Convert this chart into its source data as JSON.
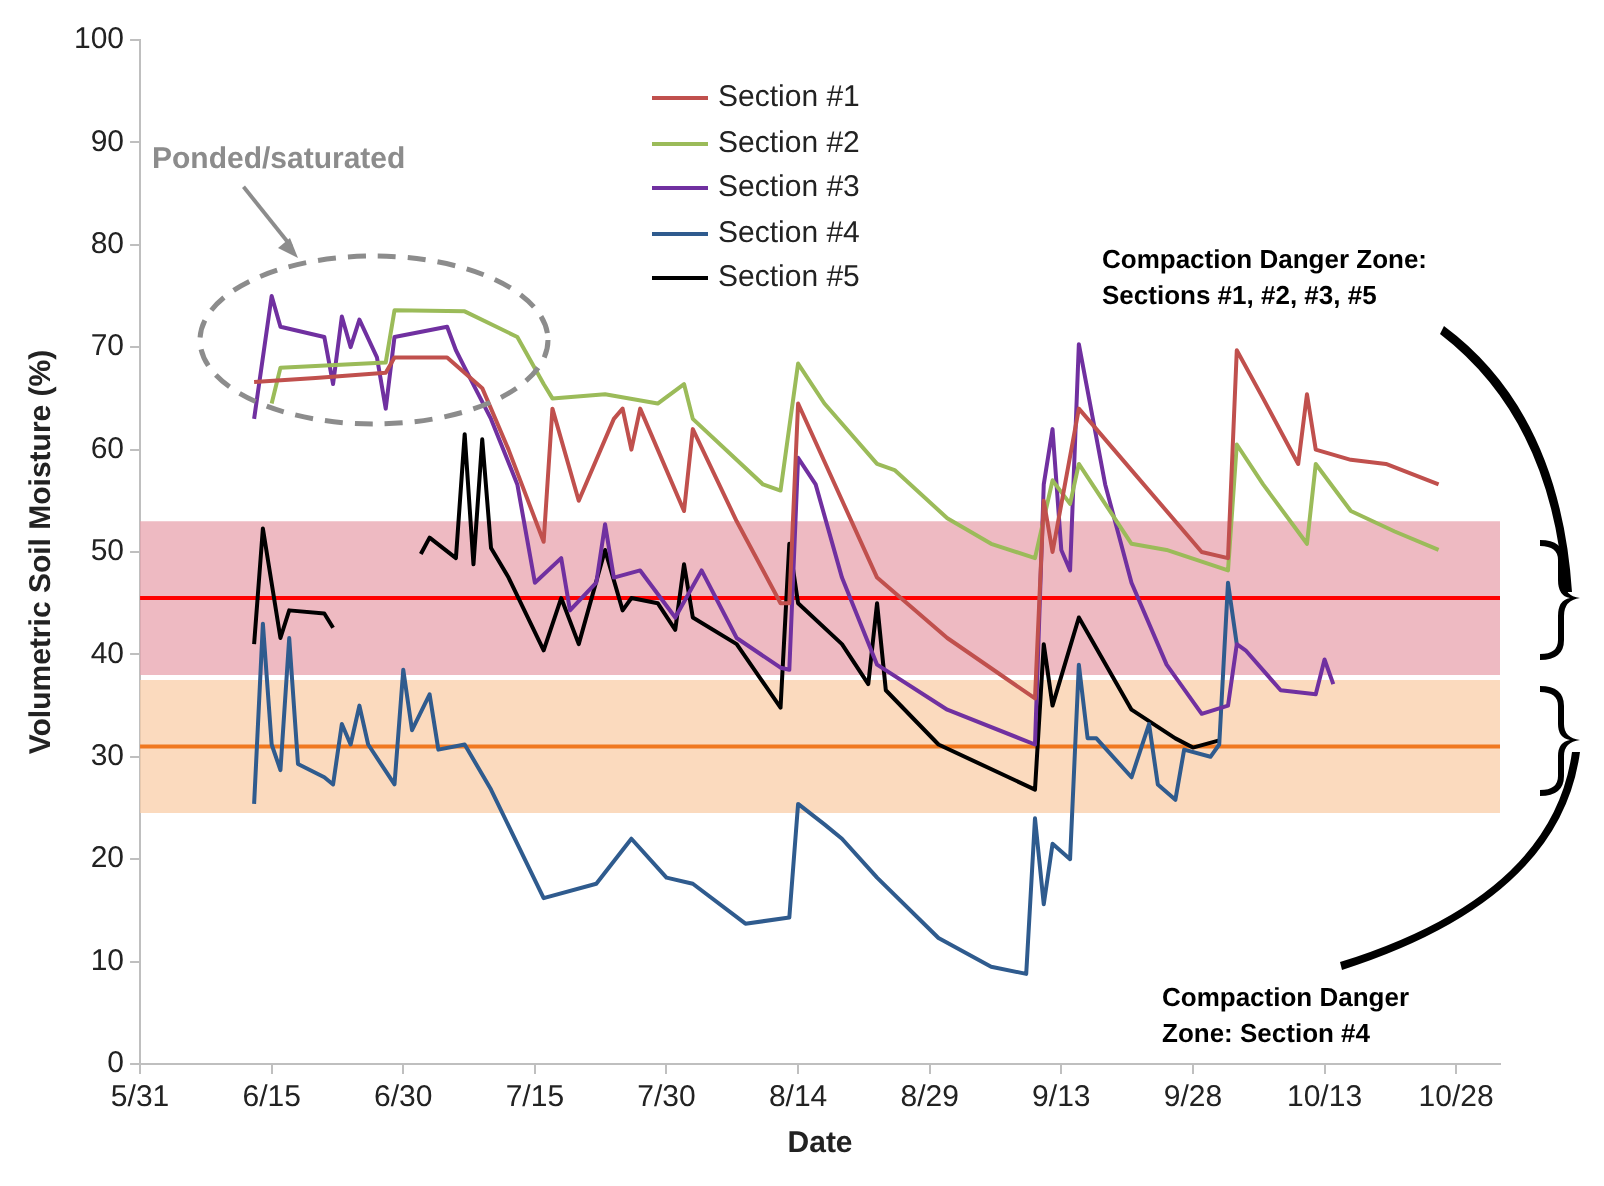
{
  "chart_data": {
    "type": "line",
    "xlabel": "Date",
    "ylabel": "Volumetric Soil Moisture (%)",
    "xlim": [
      "--05-31",
      "--11-02"
    ],
    "xticks": [
      {
        "value": "--05-31",
        "label": "5/31"
      },
      {
        "value": "--06-15",
        "label": "6/15"
      },
      {
        "value": "--06-30",
        "label": "6/30"
      },
      {
        "value": "--07-15",
        "label": "7/15"
      },
      {
        "value": "--07-30",
        "label": "7/30"
      },
      {
        "value": "--08-14",
        "label": "8/14"
      },
      {
        "value": "--08-29",
        "label": "8/29"
      },
      {
        "value": "--09-13",
        "label": "9/13"
      },
      {
        "value": "--09-28",
        "label": "9/28"
      },
      {
        "value": "--10-13",
        "label": "10/13"
      },
      {
        "value": "--10-28",
        "label": "10/28"
      }
    ],
    "ylim": [
      0,
      100
    ],
    "yticks": [
      0,
      10,
      20,
      30,
      40,
      50,
      60,
      70,
      80,
      90,
      100
    ],
    "legend": "top",
    "series": [
      {
        "name": "Section #1",
        "color": "#c0504d",
        "x": [
          "--06-13",
          "--06-20",
          "--06-28",
          "--06-29",
          "--07-05",
          "--07-09",
          "--07-10",
          "--07-12",
          "--07-16",
          "--07-17",
          "--07-20",
          "--07-24",
          "--07-25",
          "--07-26",
          "--07-27",
          "--08-01",
          "--08-02",
          "--08-07",
          "--08-12",
          "--08-13",
          "--08-14",
          "--08-23",
          "--08-31",
          "--09-10",
          "--09-11",
          "--09-12",
          "--09-15",
          "--09-21",
          "--09-29",
          "--10-02",
          "--10-03",
          "--10-06",
          "--10-10",
          "--10-11",
          "--10-12",
          "--10-16",
          "--10-20",
          "--10-26"
        ],
        "values": [
          66.6,
          67,
          67.5,
          69,
          69,
          66,
          64,
          60,
          51,
          64,
          55,
          63,
          64,
          60,
          64,
          54,
          62,
          53,
          45,
          45,
          64.5,
          47.5,
          41.6,
          35.7,
          55,
          50,
          64,
          58,
          50,
          49.4,
          69.7,
          65,
          58.6,
          65.4,
          60,
          59,
          58.6,
          56.6
        ]
      },
      {
        "name": "Section #2",
        "color": "#9bbb59",
        "x": [
          "--06-15",
          "--06-16",
          "--06-28",
          "--06-29",
          "--07-07",
          "--07-13",
          "--07-16",
          "--07-17",
          "--07-23",
          "--07-29",
          "--08-01",
          "--08-02",
          "--08-10",
          "--08-12",
          "--08-14",
          "--08-17",
          "--08-23",
          "--08-25",
          "--08-31",
          "--09-05",
          "--09-10",
          "--09-12",
          "--09-14",
          "--09-15",
          "--09-18",
          "--09-21",
          "--09-25",
          "--10-02",
          "--10-03",
          "--10-06",
          "--10-11",
          "--10-12",
          "--10-16",
          "--10-21",
          "--10-26"
        ],
        "values": [
          64.5,
          68,
          68.5,
          73.6,
          73.5,
          71,
          66.4,
          65,
          65.4,
          64.5,
          66.4,
          63,
          56.6,
          56,
          68.4,
          64.5,
          58.6,
          58,
          53.3,
          50.8,
          49.4,
          57,
          54.7,
          58.6,
          54.7,
          50.8,
          50.2,
          48.2,
          60.5,
          56.6,
          50.8,
          58.6,
          54,
          52,
          50.2
        ]
      },
      {
        "name": "Section #3",
        "color": "#7030a0",
        "x": [
          "--06-13",
          "--06-15",
          "--06-16",
          "--06-21",
          "--06-22",
          "--06-23",
          "--06-24",
          "--06-25",
          "--06-27",
          "--06-28",
          "--06-29",
          "--07-05",
          "--07-06",
          "--07-07",
          "--07-10",
          "--07-13",
          "--07-15",
          "--07-18",
          "--07-19",
          "--07-22",
          "--07-23",
          "--07-24",
          "--07-27",
          "--07-31",
          "--08-03",
          "--08-07",
          "--08-12",
          "--08-13",
          "--08-14",
          "--08-16",
          "--08-19",
          "--08-23",
          "--08-31",
          "--09-10",
          "--09-11",
          "--09-12",
          "--09-13",
          "--09-14",
          "--09-15",
          "--09-18",
          "--09-21",
          "--09-25",
          "--09-29",
          "--10-02",
          "--10-03",
          "--10-04",
          "--10-08",
          "--10-12",
          "--10-13",
          "--10-14"
        ],
        "values": [
          63,
          75,
          72,
          71,
          66.4,
          73,
          70,
          72.7,
          69,
          64,
          71,
          72,
          69.7,
          68,
          63,
          56.6,
          47,
          49.4,
          44.3,
          47,
          52.7,
          47.5,
          48.2,
          43.6,
          48.2,
          41.6,
          38.7,
          38.5,
          59.2,
          56.6,
          47.5,
          39,
          34.6,
          31.2,
          56.6,
          62,
          50.2,
          48.2,
          70.3,
          56.6,
          47,
          39,
          34.2,
          35,
          41,
          40.4,
          36.5,
          36.1,
          39.5,
          37.1
        ]
      },
      {
        "name": "Section #4",
        "color": "#2f5b8e",
        "x": [
          "--06-13",
          "--06-14",
          "--06-15",
          "--06-16",
          "--06-17",
          "--06-18",
          "--06-21",
          "--06-22",
          "--06-23",
          "--06-24",
          "--06-25",
          "--06-26",
          "--06-29",
          "--06-30",
          "--07-01",
          "--07-03",
          "--07-04",
          "--07-07",
          "--07-10",
          "--07-16",
          "--07-22",
          "--07-26",
          "--07-30",
          "--08-02",
          "--08-08",
          "--08-13",
          "--08-14",
          "--08-17",
          "--08-19",
          "--08-23",
          "--08-30",
          "--09-05",
          "--09-09",
          "--09-10",
          "--09-11",
          "--09-12",
          "--09-14",
          "--09-15",
          "--09-16",
          "--09-17",
          "--09-21",
          "--09-23",
          "--09-24",
          "--09-26",
          "--09-27",
          "--09-30",
          "--10-01",
          "--10-02",
          "--10-03"
        ],
        "values": [
          25.4,
          43,
          31.2,
          28.7,
          41.6,
          29.3,
          28,
          27.3,
          33.2,
          31.2,
          35,
          31.2,
          27.3,
          38.5,
          32.6,
          36.1,
          30.7,
          31.2,
          26.8,
          16.2,
          17.6,
          22,
          18.2,
          17.6,
          13.7,
          14.3,
          25.4,
          23.4,
          22,
          18.2,
          12.3,
          9.5,
          8.8,
          24,
          15.6,
          21.5,
          20,
          39,
          31.8,
          31.8,
          28,
          33.2,
          27.3,
          25.8,
          30.7,
          30,
          31.2,
          47,
          41
        ]
      },
      {
        "name": "Section #5",
        "color": "#000000",
        "x": [
          "--06-13",
          "--06-14",
          "--06-16",
          "--06-17",
          "--06-21",
          "--06-22",
          "--06-27",
          "--07-02",
          "--07-03",
          "--07-06",
          "--07-07",
          "--07-08",
          "--07-09",
          "--07-10",
          "--07-12",
          "--07-16",
          "--07-18",
          "--07-20",
          "--07-23",
          "--07-25",
          "--07-26",
          "--07-29",
          "--07-31",
          "--08-01",
          "--08-02",
          "--08-07",
          "--08-12",
          "--08-13",
          "--08-14",
          "--08-19",
          "--08-22",
          "--08-23",
          "--08-24",
          "--08-30",
          "--09-10",
          "--09-11",
          "--09-12",
          "--09-15",
          "--09-21",
          "--09-26",
          "--09-28",
          "--10-01"
        ],
        "values": [
          41,
          52.3,
          41.6,
          44.3,
          44,
          42.6,
          null,
          49.8,
          51.4,
          49.4,
          61.5,
          48.8,
          61,
          50.4,
          47.5,
          40.4,
          45.5,
          41,
          50.2,
          44.3,
          45.5,
          45,
          42.4,
          48.8,
          43.6,
          41,
          34.8,
          50.8,
          45,
          41,
          37.1,
          45,
          36.5,
          31.2,
          26.8,
          41,
          35,
          43.6,
          34.6,
          31.8,
          30.9,
          31.6
        ]
      }
    ],
    "bands": [
      {
        "axis": "y",
        "from": 38,
        "to": 53,
        "color": "#e8a3ad"
      },
      {
        "axis": "y",
        "from": 24.5,
        "to": 37.5,
        "color": "#f9cda8"
      }
    ],
    "ref_lines": [
      {
        "axis": "y",
        "value": 45.5,
        "color": "#ff0000"
      },
      {
        "axis": "y",
        "value": 31,
        "color": "#f07820"
      }
    ],
    "annotations": [
      "Ponded/saturated",
      "Compaction Danger Zone: Sections #1, #2, #3, #5",
      "Compaction Danger Zone: Section #4"
    ]
  }
}
